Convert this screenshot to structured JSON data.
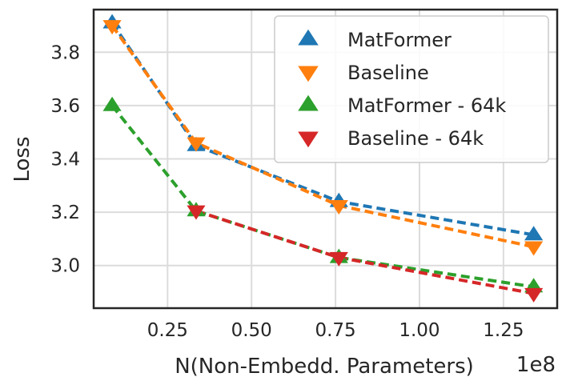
{
  "chart_data": {
    "type": "line",
    "xlabel": "N(Non-Embedd. Parameters)",
    "x_offset_text": "1e8",
    "ylabel": "Loss",
    "xlim": [
      0.03,
      1.41
    ],
    "ylim": [
      2.84,
      3.96
    ],
    "x_ticks": [
      0.25,
      0.5,
      0.75,
      1.0,
      1.25
    ],
    "x_tick_labels": [
      "0.25",
      "0.50",
      "0.75",
      "1.00",
      "1.25"
    ],
    "y_ticks": [
      3.0,
      3.2,
      3.4,
      3.6,
      3.8
    ],
    "y_tick_labels": [
      "3.0",
      "3.2",
      "3.4",
      "3.6",
      "3.8"
    ],
    "grid": true,
    "legend_position": "top-right",
    "series": [
      {
        "name": "MatFormer",
        "color": "#1f77b4",
        "marker": "triangle-up",
        "x": [
          0.085,
          0.335,
          0.76,
          1.34
        ],
        "y": [
          3.91,
          3.45,
          3.24,
          3.115
        ]
      },
      {
        "name": "Baseline",
        "color": "#ff7f0e",
        "marker": "triangle-down",
        "x": [
          0.085,
          0.335,
          0.76,
          1.34
        ],
        "y": [
          3.9,
          3.46,
          3.225,
          3.07
        ]
      },
      {
        "name": "MatFormer - 64k",
        "color": "#2ca02c",
        "marker": "triangle-up",
        "x": [
          0.085,
          0.335,
          0.76,
          1.34
        ],
        "y": [
          3.6,
          3.205,
          3.03,
          2.92
        ]
      },
      {
        "name": "Baseline - 64k",
        "color": "#d62728",
        "marker": "triangle-down",
        "x": [
          0.335,
          0.76,
          1.34
        ],
        "y": [
          3.205,
          3.03,
          2.895
        ]
      }
    ]
  }
}
